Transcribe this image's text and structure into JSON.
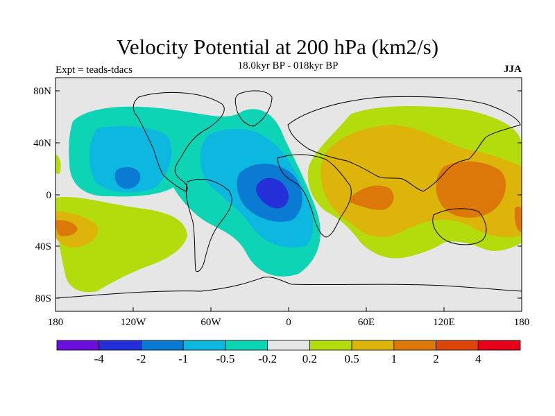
{
  "title": "Velocity Potential at 200 hPa (km2/s)",
  "subtitle": "18.0kyr BP - 018kyr BP",
  "experiment": "Expt = teads-tdacs",
  "season": "JJA",
  "lat_ticks": [
    "80N",
    "40N",
    "0",
    "40S",
    "80S"
  ],
  "lon_ticks": [
    "180",
    "120W",
    "60W",
    "0",
    "60E",
    "120E",
    "180"
  ],
  "colorbar": {
    "labels": [
      "-4",
      "-2",
      "-1",
      "-0.5",
      "-0.2",
      "0.2",
      "0.5",
      "1",
      "2",
      "4"
    ],
    "colors": [
      "#6b0fdc",
      "#2530d8",
      "#0a7ad2",
      "#0cb8e0",
      "#0dd4b4",
      "#e6e6e6",
      "#b4dc0c",
      "#dcb40a",
      "#dc780a",
      "#dc460a",
      "#e6001a"
    ]
  }
}
